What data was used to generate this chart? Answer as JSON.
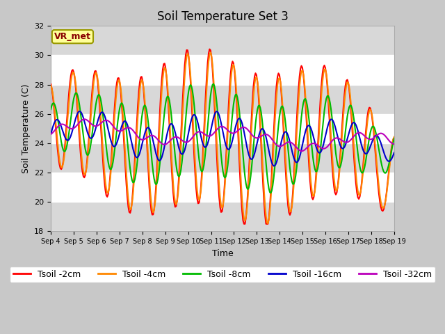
{
  "title": "Soil Temperature Set 3",
  "xlabel": "Time",
  "ylabel": "Soil Temperature (C)",
  "ylim": [
    18,
    32
  ],
  "yticks": [
    18,
    20,
    22,
    24,
    26,
    28,
    30,
    32
  ],
  "xtick_labels": [
    "Sep 4",
    "Sep 5",
    "Sep 6",
    "Sep 7",
    "Sep 8",
    "Sep 9",
    "Sep 10",
    "Sep 11",
    "Sep 12",
    "Sep 13",
    "Sep 14",
    "Sep 15",
    "Sep 16",
    "Sep 17",
    "Sep 18",
    "Sep 19"
  ],
  "legend_labels": [
    "Tsoil -2cm",
    "Tsoil -4cm",
    "Tsoil -8cm",
    "Tsoil -16cm",
    "Tsoil -32cm"
  ],
  "legend_colors": [
    "#ff0000",
    "#ff8800",
    "#00bb00",
    "#0000cc",
    "#bb00bb"
  ],
  "annotation_text": "VR_met",
  "annotation_bg": "#ffff99",
  "annotation_fg": "#880000",
  "annotation_edge": "#999900",
  "fig_bg": "#c8c8c8",
  "plot_bg": "#e8e8e8",
  "band_color": "#d8d8d8",
  "grid_color": "#ffffff",
  "title_fontsize": 12,
  "label_fontsize": 9,
  "tick_fontsize": 8,
  "legend_fontsize": 9,
  "linewidth": 1.5
}
